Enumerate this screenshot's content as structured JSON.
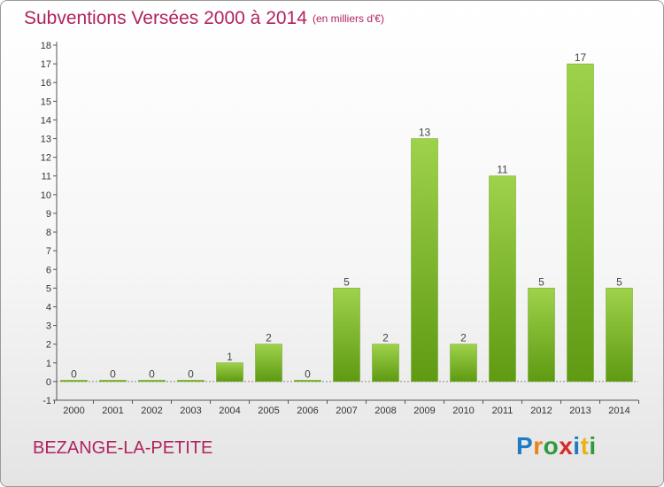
{
  "header": {
    "title": "Subventions Versées 2000 à 2014",
    "subtitle": "(en milliers d'€)"
  },
  "footer": {
    "commune": "BEZANGE-LA-PETITE",
    "logo_letters": [
      {
        "ch": "P",
        "color": "#1f7bc4"
      },
      {
        "ch": "r",
        "color": "#e8841a"
      },
      {
        "ch": "o",
        "color": "#2e9a3a"
      },
      {
        "ch": "x",
        "color": "#d42a2a"
      },
      {
        "ch": "i",
        "color": "#1f7bc4"
      },
      {
        "ch": "t",
        "color": "#e8b21a"
      },
      {
        "ch": "i",
        "color": "#2e9a3a"
      }
    ]
  },
  "chart_data": {
    "type": "bar",
    "categories": [
      "2000",
      "2001",
      "2002",
      "2003",
      "2004",
      "2005",
      "2006",
      "2007",
      "2008",
      "2009",
      "2010",
      "2011",
      "2012",
      "2013",
      "2014"
    ],
    "values": [
      0,
      0,
      0,
      0,
      1,
      2,
      0,
      5,
      2,
      13,
      2,
      11,
      5,
      17,
      5
    ],
    "data_labels": [
      "0",
      "0",
      "0",
      "0",
      "1",
      "2",
      "0",
      "5",
      "2",
      "13",
      "2",
      "11",
      "5",
      "17",
      "5"
    ],
    "yticks": [
      -1,
      0,
      1,
      2,
      3,
      4,
      5,
      6,
      7,
      8,
      9,
      10,
      11,
      12,
      13,
      14,
      15,
      16,
      17,
      18
    ],
    "ylim": [
      -1,
      18
    ],
    "xlabel": "",
    "ylabel": "",
    "grid": false,
    "bar_color_top": "#9fd24b",
    "bar_color_bottom": "#5e9a12"
  }
}
